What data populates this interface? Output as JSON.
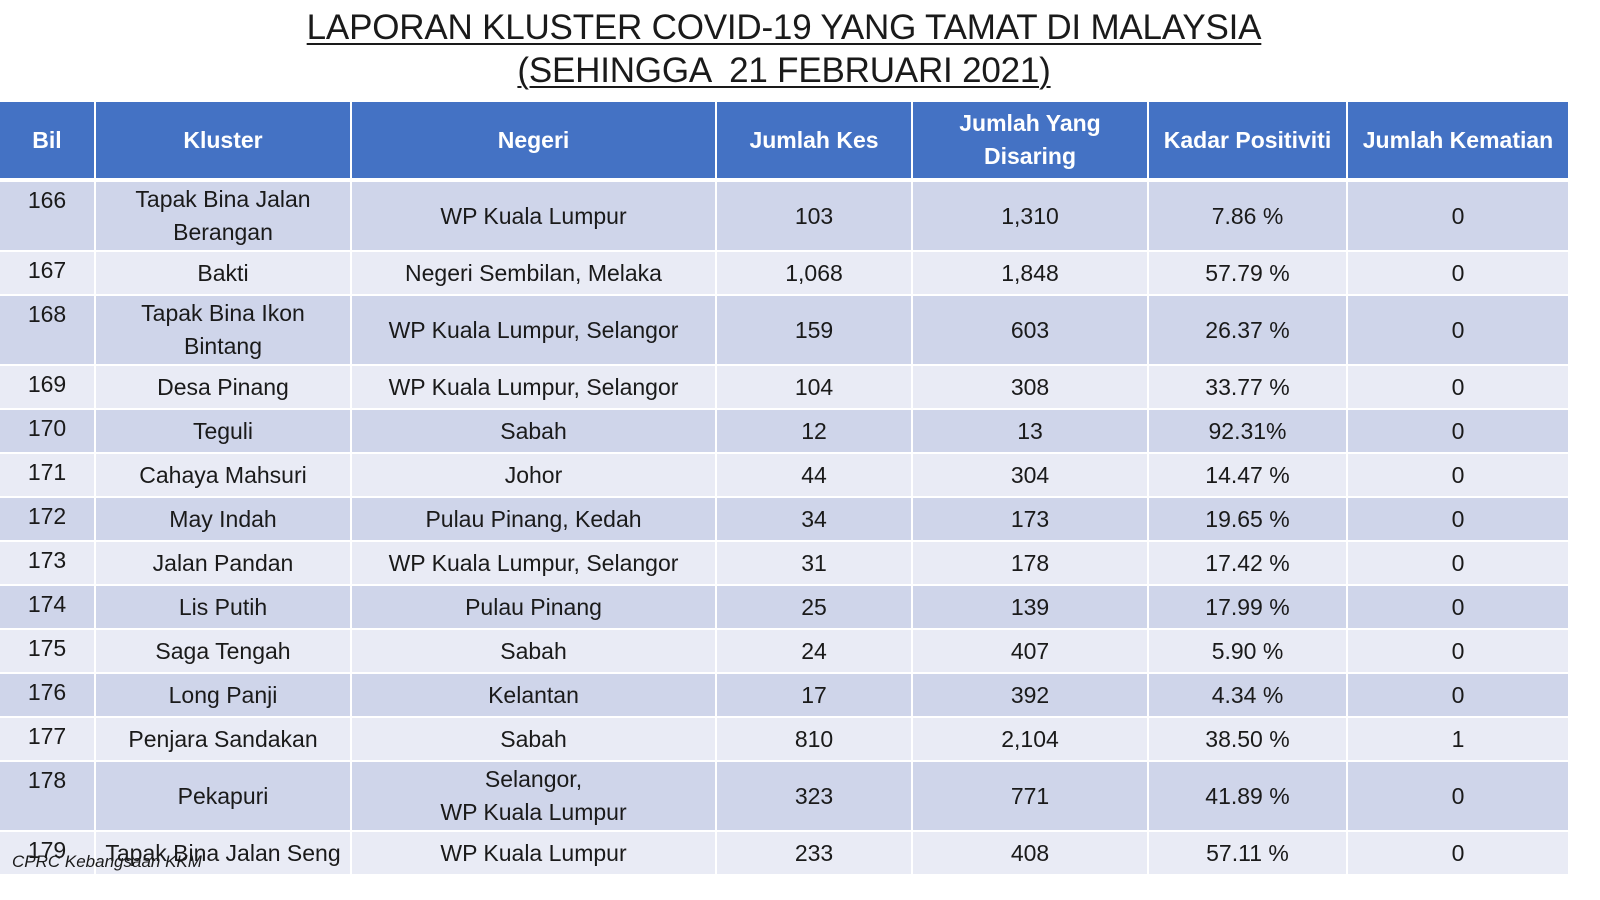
{
  "title": {
    "line1": "LAPORAN KLUSTER COVID-19 YANG TAMAT DI MALAYSIA",
    "line2": "(SEHINGGA  21 FEBRUARI 2021)"
  },
  "table": {
    "headers": {
      "bil": "Bil",
      "kluster": "Kluster",
      "negeri": "Negeri",
      "jumlah_kes": "Jumlah Kes",
      "jumlah_disaring_line1": "Jumlah Yang",
      "jumlah_disaring_line2": "Disaring",
      "kadar_positiviti": "Kadar Positiviti",
      "jumlah_kematian": "Jumlah Kematian"
    },
    "rows": [
      {
        "bil": "166",
        "kluster_1": "Tapak Bina Jalan",
        "kluster_2": "Berangan",
        "negeri_1": "WP Kuala Lumpur",
        "negeri_2": "",
        "kes": "103",
        "disaring": "1,310",
        "positiviti": "7.86 %",
        "kematian": "0"
      },
      {
        "bil": "167",
        "kluster_1": "Bakti",
        "kluster_2": "",
        "negeri_1": "Negeri Sembilan, Melaka",
        "negeri_2": "",
        "kes": "1,068",
        "disaring": "1,848",
        "positiviti": "57.79 %",
        "kematian": "0"
      },
      {
        "bil": "168",
        "kluster_1": "Tapak Bina Ikon",
        "kluster_2": "Bintang",
        "negeri_1": "WP Kuala Lumpur, Selangor",
        "negeri_2": "",
        "kes": "159",
        "disaring": "603",
        "positiviti": "26.37 %",
        "kematian": "0"
      },
      {
        "bil": "169",
        "kluster_1": "Desa Pinang",
        "kluster_2": "",
        "negeri_1": "WP Kuala Lumpur, Selangor",
        "negeri_2": "",
        "kes": "104",
        "disaring": "308",
        "positiviti": "33.77 %",
        "kematian": "0"
      },
      {
        "bil": "170",
        "kluster_1": "Teguli",
        "kluster_2": "",
        "negeri_1": "Sabah",
        "negeri_2": "",
        "kes": "12",
        "disaring": "13",
        "positiviti": "92.31%",
        "kematian": "0"
      },
      {
        "bil": "171",
        "kluster_1": "Cahaya Mahsuri",
        "kluster_2": "",
        "negeri_1": "Johor",
        "negeri_2": "",
        "kes": "44",
        "disaring": "304",
        "positiviti": "14.47 %",
        "kematian": "0"
      },
      {
        "bil": "172",
        "kluster_1": "May Indah",
        "kluster_2": "",
        "negeri_1": "Pulau Pinang, Kedah",
        "negeri_2": "",
        "kes": "34",
        "disaring": "173",
        "positiviti": "19.65 %",
        "kematian": "0"
      },
      {
        "bil": "173",
        "kluster_1": "Jalan Pandan",
        "kluster_2": "",
        "negeri_1": "WP Kuala Lumpur, Selangor",
        "negeri_2": "",
        "kes": "31",
        "disaring": "178",
        "positiviti": "17.42 %",
        "kematian": "0"
      },
      {
        "bil": "174",
        "kluster_1": "Lis Putih",
        "kluster_2": "",
        "negeri_1": "Pulau Pinang",
        "negeri_2": "",
        "kes": "25",
        "disaring": "139",
        "positiviti": "17.99 %",
        "kematian": "0"
      },
      {
        "bil": "175",
        "kluster_1": "Saga Tengah",
        "kluster_2": "",
        "negeri_1": "Sabah",
        "negeri_2": "",
        "kes": "24",
        "disaring": "407",
        "positiviti": "5.90 %",
        "kematian": "0"
      },
      {
        "bil": "176",
        "kluster_1": "Long Panji",
        "kluster_2": "",
        "negeri_1": "Kelantan",
        "negeri_2": "",
        "kes": "17",
        "disaring": "392",
        "positiviti": "4.34 %",
        "kematian": "0"
      },
      {
        "bil": "177",
        "kluster_1": "Penjara Sandakan",
        "kluster_2": "",
        "negeri_1": "Sabah",
        "negeri_2": "",
        "kes": "810",
        "disaring": "2,104",
        "positiviti": "38.50 %",
        "kematian": "1"
      },
      {
        "bil": "178",
        "kluster_1": "Pekapuri",
        "kluster_2": "",
        "negeri_1": "Selangor,",
        "negeri_2": "WP Kuala Lumpur",
        "kes": "323",
        "disaring": "771",
        "positiviti": "41.89 %",
        "kematian": "0"
      },
      {
        "bil": "179",
        "kluster_1": "Tapak Bina Jalan Seng",
        "kluster_2": "",
        "negeri_1": "WP Kuala Lumpur",
        "negeri_2": "",
        "kes": "233",
        "disaring": "408",
        "positiviti": "57.11 %",
        "kematian": "0"
      }
    ]
  },
  "footer": {
    "source": "CPRC Kebangsaan KKM"
  },
  "colors": {
    "header_bg": "#4472c4",
    "row_odd": "#cfd5ea",
    "row_even": "#e9ebf5"
  }
}
